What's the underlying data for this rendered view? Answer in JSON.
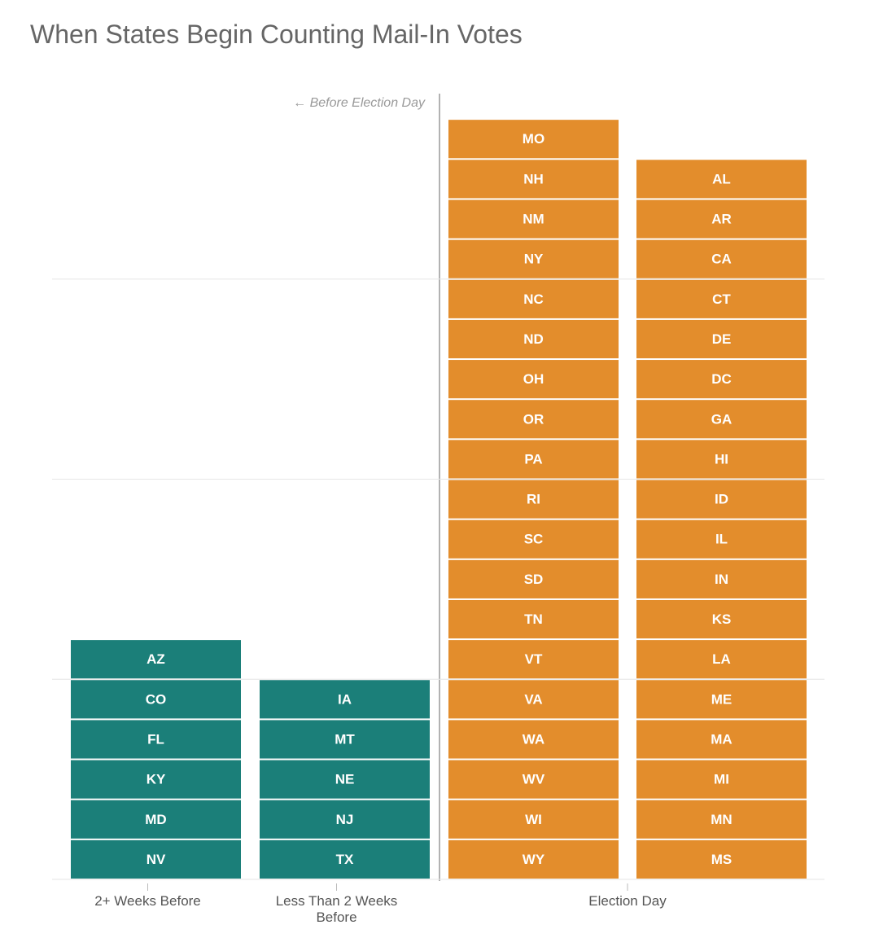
{
  "chart_data": {
    "type": "unit",
    "title": "When States Begin Counting Mail-In Votes",
    "annotation": "← Before Election Day",
    "grid": true,
    "groups": [
      {
        "label": "2+ Weeks Before",
        "color": "#1b7f79",
        "columns": [
          [
            "AZ",
            "CO",
            "FL",
            "KY",
            "MD",
            "NV"
          ]
        ]
      },
      {
        "label": "Less Than 2 Weeks Before",
        "color": "#1b7f79",
        "columns": [
          [
            "IA",
            "MT",
            "NE",
            "NJ",
            "TX"
          ]
        ]
      },
      {
        "label": "Election Day",
        "color": "#e38d2c",
        "columns": [
          [
            "MO",
            "NH",
            "NM",
            "NY",
            "NC",
            "ND",
            "OH",
            "OR",
            "PA",
            "RI",
            "SC",
            "SD",
            "TN",
            "VT",
            "VA",
            "WA",
            "WV",
            "WI",
            "WY"
          ],
          [
            "AL",
            "AR",
            "CA",
            "CT",
            "DE",
            "DC",
            "GA",
            "HI",
            "ID",
            "IL",
            "IN",
            "KS",
            "LA",
            "ME",
            "MA",
            "MI",
            "MN",
            "MS"
          ]
        ]
      }
    ]
  }
}
